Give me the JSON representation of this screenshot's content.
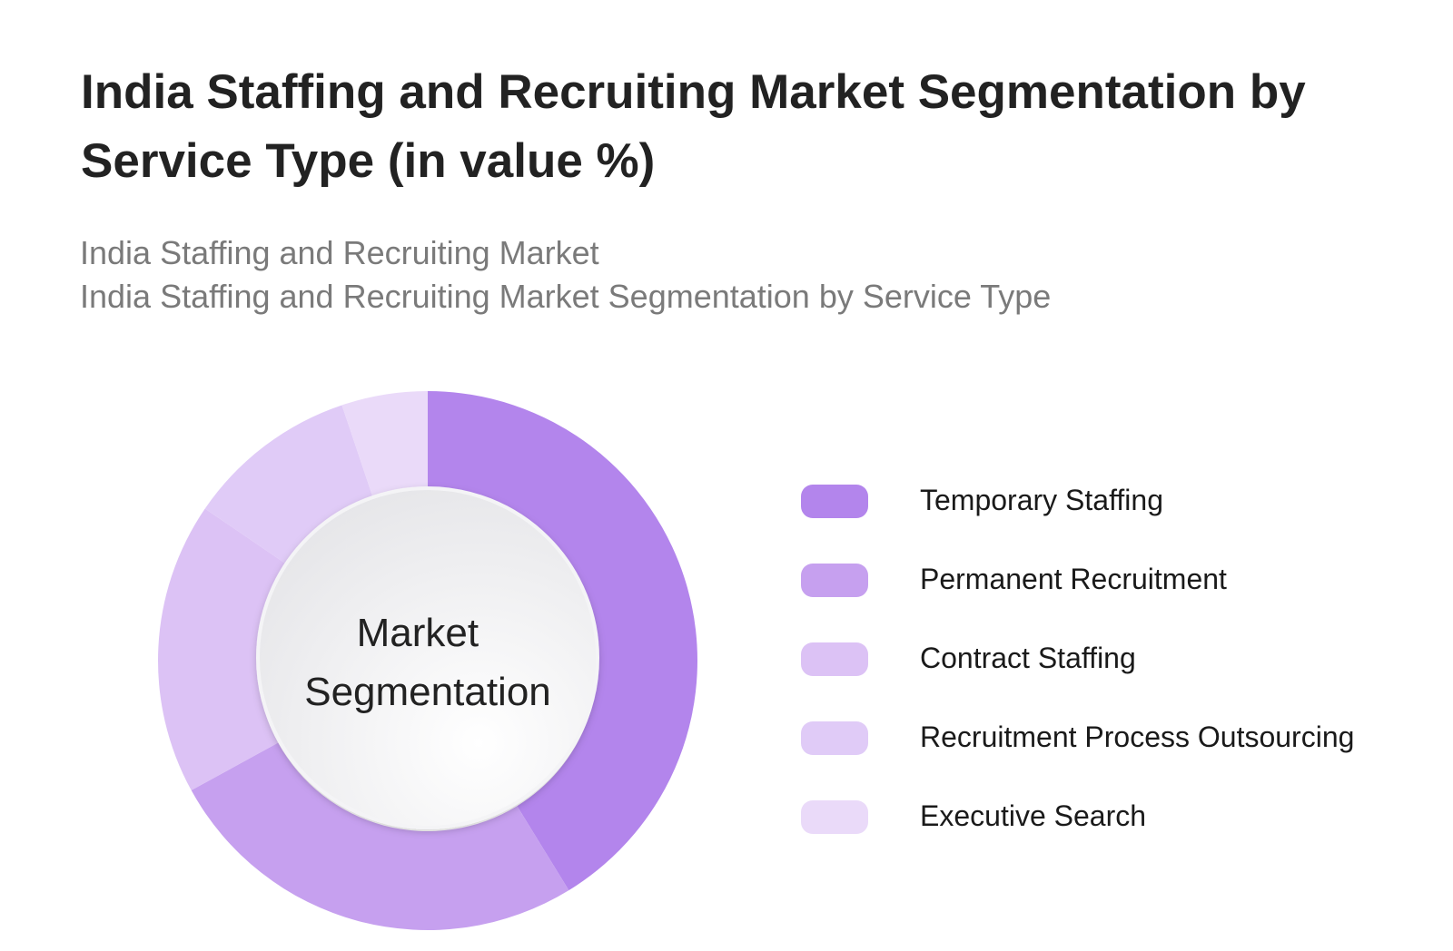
{
  "title": "India Staffing and Recruiting Market Segmentation by Service Type (in value %)",
  "subtitle_line1": "India Staffing and Recruiting Market",
  "subtitle_line2": "India Staffing and Recruiting Market Segmentation by Service Type",
  "center_label_line1": "Market",
  "center_label_line2": "Segmentation",
  "chart_data": {
    "type": "pie",
    "variant": "donut",
    "title": "India Staffing and Recruiting Market Segmentation by Service Type (in value %)",
    "legend_position": "right",
    "categories": [
      "Temporary Staffing",
      "Permanent Recruitment",
      "Contract Staffing",
      "Recruitment Process Outsourcing",
      "Executive Search"
    ],
    "values": [
      40,
      25,
      17,
      10,
      5
    ],
    "colors": [
      "#b385ec",
      "#c6a0ef",
      "#dcc2f5",
      "#e0cbf7",
      "#eadaf9"
    ]
  }
}
